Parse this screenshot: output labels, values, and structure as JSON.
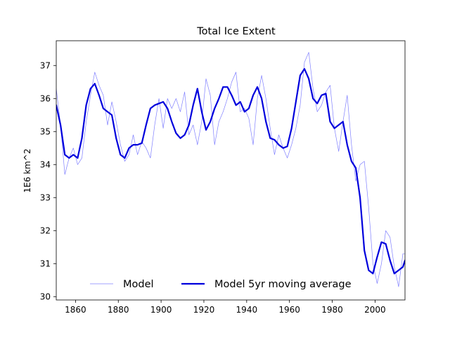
{
  "chart_data": {
    "type": "line",
    "title": "Total Ice Extent",
    "xlabel": "",
    "ylabel": "1E6 km^2",
    "xlim": [
      1851,
      2014
    ],
    "ylim": [
      29.9,
      37.75
    ],
    "xticks": [
      1860,
      1880,
      1900,
      1920,
      1940,
      1960,
      1980,
      2000
    ],
    "yticks": [
      30,
      31,
      32,
      33,
      34,
      35,
      36,
      37
    ],
    "grid": false,
    "legend": {
      "placement": "bottom-center",
      "frame": false
    },
    "colors": {
      "model": "#8080ff",
      "moving_average": "#0000dd"
    },
    "series": [
      {
        "name": "Model",
        "style": "thin",
        "x": [
          1851,
          1853,
          1855,
          1857,
          1859,
          1861,
          1863,
          1865,
          1867,
          1869,
          1871,
          1873,
          1875,
          1877,
          1879,
          1881,
          1883,
          1885,
          1887,
          1889,
          1891,
          1893,
          1895,
          1897,
          1899,
          1901,
          1903,
          1905,
          1907,
          1909,
          1911,
          1913,
          1915,
          1917,
          1919,
          1921,
          1923,
          1925,
          1927,
          1929,
          1931,
          1933,
          1935,
          1937,
          1939,
          1941,
          1943,
          1945,
          1947,
          1949,
          1951,
          1953,
          1955,
          1957,
          1959,
          1961,
          1963,
          1965,
          1967,
          1969,
          1971,
          1973,
          1975,
          1977,
          1979,
          1981,
          1983,
          1985,
          1987,
          1989,
          1991,
          1993,
          1995,
          1997,
          1999,
          2001,
          2003,
          2005,
          2007,
          2009,
          2011,
          2013,
          2014
        ],
        "y": [
          36.3,
          35.2,
          33.7,
          34.2,
          34.5,
          34.0,
          34.2,
          35.3,
          36.1,
          36.8,
          36.4,
          36.1,
          35.2,
          35.9,
          35.3,
          34.6,
          34.1,
          34.3,
          34.9,
          34.3,
          34.7,
          34.5,
          34.2,
          35.2,
          36.0,
          35.1,
          36.0,
          35.7,
          36.0,
          35.6,
          36.2,
          34.9,
          35.2,
          34.6,
          35.3,
          36.6,
          36.1,
          34.6,
          35.3,
          35.6,
          36.0,
          36.5,
          36.8,
          35.6,
          35.7,
          35.4,
          34.6,
          36.0,
          36.7,
          36.0,
          35.1,
          34.3,
          34.9,
          34.5,
          34.2,
          34.6,
          35.1,
          35.8,
          37.1,
          37.4,
          36.3,
          35.6,
          35.8,
          36.2,
          36.4,
          35.1,
          34.4,
          35.3,
          36.1,
          34.6,
          33.5,
          34.0,
          34.1,
          32.7,
          31.0,
          30.4,
          31.0,
          32.0,
          31.8,
          30.9,
          30.3,
          31.3,
          31.3
        ]
      },
      {
        "name": "Model 5yr moving average",
        "style": "thick",
        "x": [
          1851,
          1853,
          1855,
          1857,
          1859,
          1861,
          1863,
          1865,
          1867,
          1869,
          1871,
          1873,
          1875,
          1877,
          1879,
          1881,
          1883,
          1885,
          1887,
          1889,
          1891,
          1893,
          1895,
          1897,
          1899,
          1901,
          1903,
          1905,
          1907,
          1909,
          1911,
          1913,
          1915,
          1917,
          1919,
          1921,
          1923,
          1925,
          1927,
          1929,
          1931,
          1933,
          1935,
          1937,
          1939,
          1941,
          1943,
          1945,
          1947,
          1949,
          1951,
          1953,
          1955,
          1957,
          1959,
          1961,
          1963,
          1965,
          1967,
          1969,
          1971,
          1973,
          1975,
          1977,
          1979,
          1981,
          1983,
          1985,
          1987,
          1989,
          1991,
          1993,
          1995,
          1997,
          1999,
          2001,
          2003,
          2005,
          2007,
          2009,
          2011,
          2013,
          2014
        ],
        "y": [
          35.8,
          35.2,
          34.3,
          34.2,
          34.3,
          34.2,
          34.8,
          35.8,
          36.3,
          36.45,
          36.1,
          35.7,
          35.6,
          35.5,
          34.8,
          34.3,
          34.2,
          34.5,
          34.6,
          34.6,
          34.65,
          35.2,
          35.7,
          35.8,
          35.85,
          35.9,
          35.7,
          35.3,
          34.95,
          34.8,
          34.9,
          35.2,
          35.8,
          36.3,
          35.6,
          35.05,
          35.3,
          35.7,
          36.0,
          36.35,
          36.35,
          36.1,
          35.8,
          35.9,
          35.6,
          35.7,
          36.1,
          36.35,
          36.0,
          35.3,
          34.8,
          34.75,
          34.6,
          34.5,
          34.55,
          35.1,
          35.9,
          36.7,
          36.9,
          36.6,
          36.0,
          35.85,
          36.1,
          36.15,
          35.3,
          35.1,
          35.2,
          35.3,
          34.6,
          34.1,
          33.9,
          33.0,
          31.4,
          30.8,
          30.7,
          31.2,
          31.65,
          31.6,
          31.1,
          30.7,
          30.8,
          30.9,
          31.1
        ]
      }
    ]
  }
}
